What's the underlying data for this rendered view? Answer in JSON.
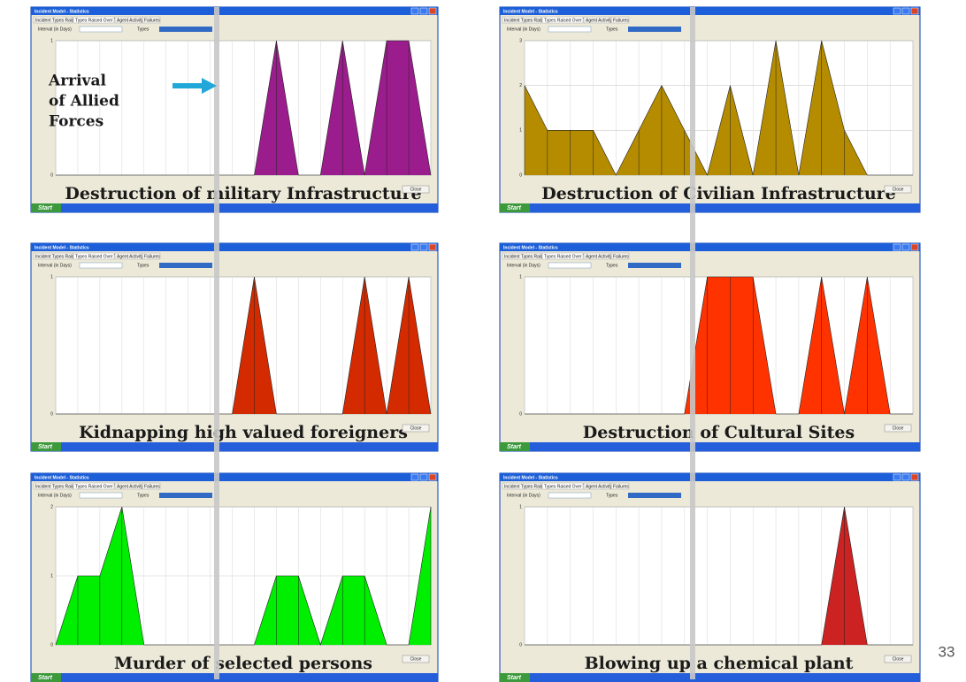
{
  "slide": {
    "annotation": [
      "Arrival",
      "of Allied",
      "Forces"
    ],
    "page_number": "33"
  },
  "window": {
    "title": "Incident Model - Statistics",
    "tabs": [
      "Incident Types Raised",
      "Types Raised Over Time",
      "Agent Activity",
      "Failures"
    ],
    "interval_label": "Interval (in Days)",
    "types_label": "Types",
    "close": "Close",
    "start": "Start"
  },
  "chart_data": [
    {
      "type": "area",
      "title": "Destruction of military Infrastructure",
      "categories": [
        null,
        null,
        null,
        null,
        null,
        null,
        null,
        null,
        null,
        null,
        null,
        null,
        null,
        null,
        null,
        null,
        null,
        null
      ],
      "values": [
        0,
        0,
        0,
        0,
        0,
        0,
        0,
        0,
        0,
        0,
        1,
        0,
        0,
        1,
        0,
        1,
        1,
        0
      ],
      "color": "#9b1c8c",
      "ylim": [
        0,
        1
      ],
      "yticks": [
        0,
        1
      ],
      "grid": true
    },
    {
      "type": "area",
      "title": "Destruction of Civilian Infrastructure",
      "categories": [
        null,
        null,
        null,
        null,
        null,
        null,
        null,
        null,
        null,
        null,
        null,
        null,
        null,
        null,
        null,
        null,
        null,
        null
      ],
      "values": [
        2,
        1,
        1,
        1,
        0,
        1,
        2,
        1,
        0,
        2,
        0,
        3,
        0,
        3,
        1,
        0,
        0,
        0
      ],
      "color": "#b58c00",
      "ylim": [
        0,
        3
      ],
      "yticks": [
        0,
        1,
        2,
        3
      ],
      "grid": true
    },
    {
      "type": "area",
      "title": "Kidnapping high valued foreigners",
      "categories": [
        null,
        null,
        null,
        null,
        null,
        null,
        null,
        null,
        null,
        null,
        null,
        null,
        null,
        null,
        null,
        null,
        null,
        null
      ],
      "values": [
        0,
        0,
        0,
        0,
        0,
        0,
        0,
        0,
        0,
        1,
        0,
        0,
        0,
        0,
        1,
        0,
        1,
        0
      ],
      "color": "#d42a00",
      "ylim": [
        0,
        1
      ],
      "yticks": [
        0,
        1
      ],
      "grid": true
    },
    {
      "type": "area",
      "title": "Destruction of Cultural Sites",
      "categories": [
        null,
        null,
        null,
        null,
        null,
        null,
        null,
        null,
        null,
        null,
        null,
        null,
        null,
        null,
        null,
        null,
        null,
        null
      ],
      "values": [
        0,
        0,
        0,
        0,
        0,
        0,
        0,
        0,
        1,
        1,
        1,
        0,
        0,
        1,
        0,
        1,
        0,
        0
      ],
      "color": "#ff3300",
      "ylim": [
        0,
        1
      ],
      "yticks": [
        0,
        1
      ],
      "grid": true
    },
    {
      "type": "area",
      "title": "Murder of selected persons",
      "categories": [
        null,
        null,
        null,
        null,
        null,
        null,
        null,
        null,
        null,
        null,
        null,
        null,
        null,
        null,
        null,
        null,
        null,
        null
      ],
      "values": [
        0,
        1,
        1,
        2,
        0,
        0,
        0,
        0,
        0,
        0,
        1,
        1,
        0,
        1,
        1,
        0,
        0,
        2
      ],
      "color": "#00ee00",
      "ylim": [
        0,
        2
      ],
      "yticks": [
        0,
        1,
        2
      ],
      "grid": true
    },
    {
      "type": "area",
      "title": "Blowing up a chemical plant",
      "categories": [
        null,
        null,
        null,
        null,
        null,
        null,
        null,
        null,
        null,
        null,
        null,
        null,
        null,
        null,
        null,
        null,
        null,
        null
      ],
      "values": [
        0,
        0,
        0,
        0,
        0,
        0,
        0,
        0,
        0,
        0,
        0,
        0,
        0,
        0,
        1,
        0,
        0,
        0
      ],
      "color": "#cc2222",
      "ylim": [
        0,
        1
      ],
      "yticks": [
        0,
        1
      ],
      "grid": true
    }
  ]
}
